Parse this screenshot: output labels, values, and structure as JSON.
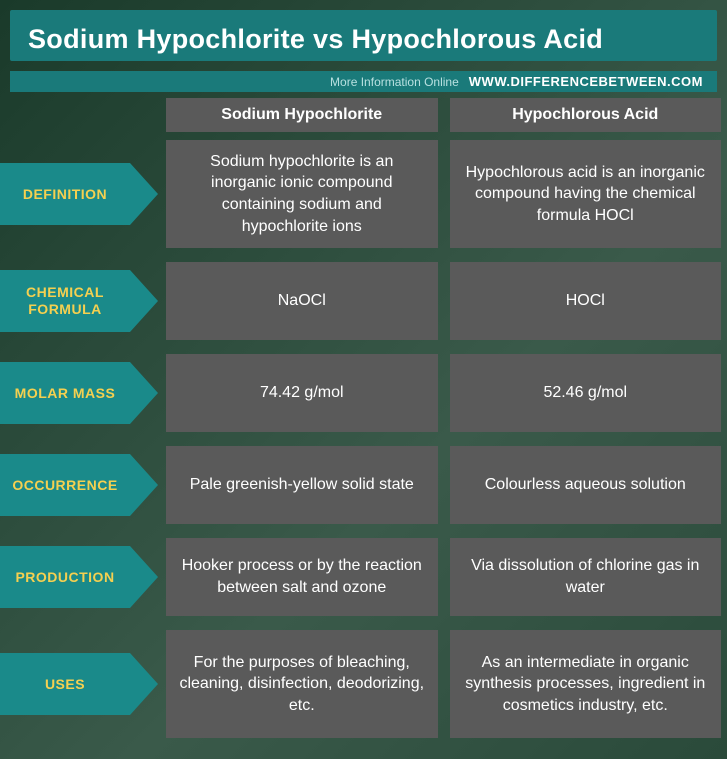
{
  "header": {
    "title": "Sodium Hypochlorite vs Hypochlorous Acid",
    "more_info": "More Information  Online",
    "site": "WWW.DIFFERENCEBETWEEN.COM"
  },
  "columns": {
    "col1": "Sodium Hypochlorite",
    "col2": "Hypochlorous Acid"
  },
  "rows": [
    {
      "label": "DEFINITION",
      "col1": "Sodium hypochlorite is an inorganic ionic compound containing sodium and hypochlorite ions",
      "col2": "Hypochlorous acid is an inorganic compound having the chemical formula HOCl",
      "tall": true
    },
    {
      "label": "CHEMICAL FORMULA",
      "col1": "NaOCl",
      "col2": "HOCl",
      "tall": false
    },
    {
      "label": "MOLAR MASS",
      "col1": "74.42 g/mol",
      "col2": "52.46 g/mol",
      "tall": false
    },
    {
      "label": "OCCURRENCE",
      "col1": "Pale greenish-yellow solid state",
      "col2": "Colourless aqueous solution",
      "tall": false
    },
    {
      "label": "PRODUCTION",
      "col1": "Hooker process or by the reaction between salt and ozone",
      "col2": "Via dissolution of chlorine gas in water",
      "tall": false
    },
    {
      "label": "USES",
      "col1": "For the purposes of bleaching, cleaning, disinfection, deodorizing, etc.",
      "col2": "As an intermediate in organic synthesis processes, ingredient in cosmetics industry, etc.",
      "tall": true
    }
  ],
  "colors": {
    "header_bg": "#1a7a7a",
    "label_bg": "#1a8a8a",
    "label_text": "#f5d050",
    "cell_bg": "#5a5a5a",
    "text": "#ffffff"
  }
}
